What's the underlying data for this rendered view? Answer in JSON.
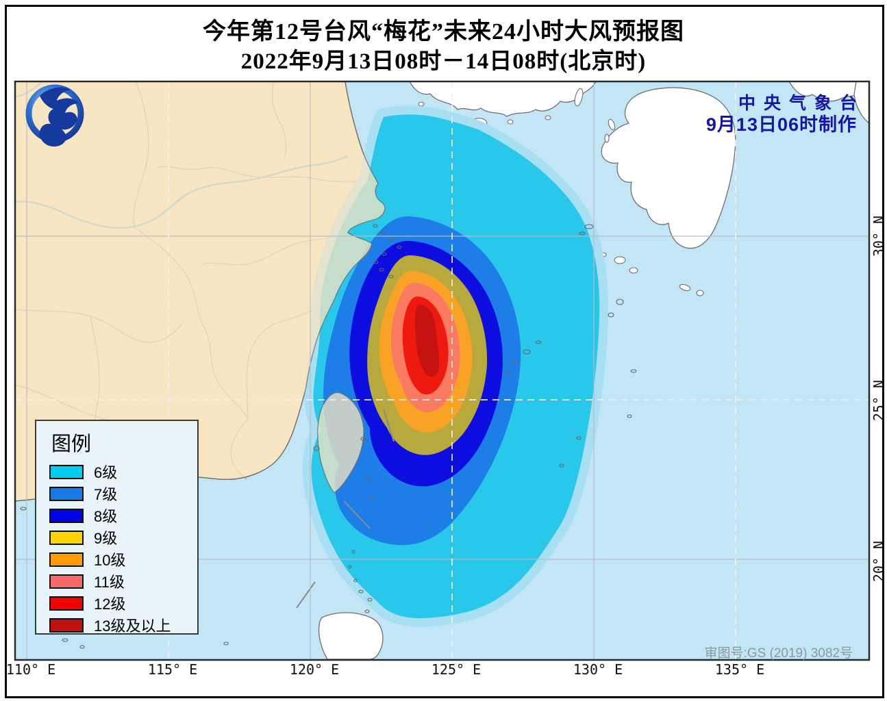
{
  "title": {
    "line1": "今年第12号台风“梅花”未来24小时大风预报图",
    "line2": "2022年9月13日08时－14日08时(北京时)"
  },
  "credit": {
    "agency": "中央气象台",
    "issued": "9月13日06时制作"
  },
  "map_note": "审图号:GS (2019) 3082号",
  "legend": {
    "title": "图例",
    "items": [
      {
        "label": "6级",
        "color": "#00CCF0"
      },
      {
        "label": "7级",
        "color": "#1778E8"
      },
      {
        "label": "8级",
        "color": "#0202E8"
      },
      {
        "label": "9级",
        "color": "#FFD400"
      },
      {
        "label": "10级",
        "color": "#FF9C00"
      },
      {
        "label": "11级",
        "color": "#F86A6A"
      },
      {
        "label": "12级",
        "color": "#F50000"
      },
      {
        "label": "13级及以上",
        "color": "#BE1210"
      }
    ]
  },
  "axis": {
    "lon": [
      "110° E",
      "115° E",
      "120° E",
      "125° E",
      "130° E",
      "135° E"
    ],
    "lat": [
      "30° N",
      "25° N",
      "20° N"
    ]
  },
  "palette": {
    "ocean": "#C3E6F6",
    "mainland": "#F8E6C2",
    "foreign_land": "#FFFFFF",
    "coast": "#6E6E6E",
    "province_border": "#9C9C9C",
    "river": "#55B8F0",
    "halo": "#A9DFF2",
    "wind_map": {
      "lv6": "#29C7E9",
      "lv7": "#1E7EE8",
      "lv8": "#0D0DE0",
      "lv9": "#B7A93C",
      "lv10": "#F8A325",
      "lv11": "#FA7B61",
      "lv12": "#EE1A10",
      "lv13": "#C41310"
    }
  }
}
